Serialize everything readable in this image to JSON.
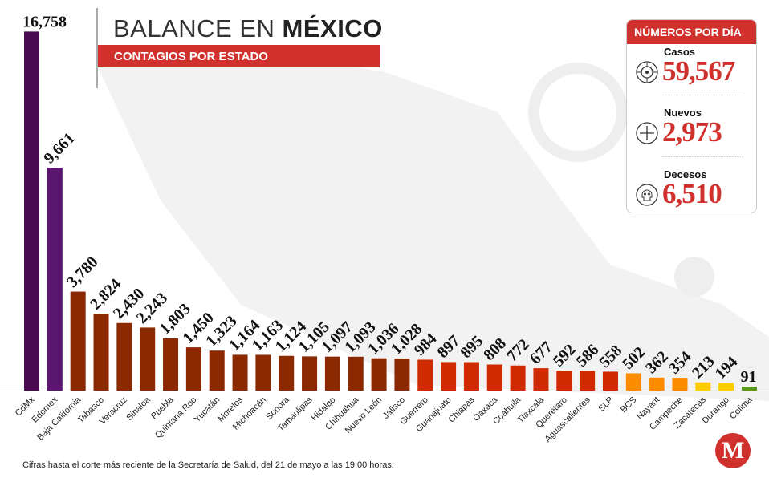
{
  "header": {
    "title_light": "BALANCE EN ",
    "title_bold": "MÉXICO",
    "subtitle": "CONTAGIOS POR ESTADO"
  },
  "card": {
    "title": "NÚMEROS POR DÍA",
    "stats": [
      {
        "label": "Casos",
        "value": "59,567",
        "icon": "virus-icon"
      },
      {
        "label": "Nuevos",
        "value": "2,973",
        "icon": "plus-circle-icon"
      },
      {
        "label": "Decesos",
        "value": "6,510",
        "icon": "skull-icon"
      }
    ]
  },
  "footer": "Cifras hasta el corte más reciente de la Secretaría de Salud, del 21 de mayo a las 19:00 horas.",
  "logo": "M",
  "chart_data": {
    "type": "bar",
    "title": "CONTAGIOS POR ESTADO",
    "categories": [
      "CdMx",
      "Edomex",
      "Baja California",
      "Tabasco",
      "Veracruz",
      "Sinaloa",
      "Puebla",
      "Quintana Roo",
      "Yucatán",
      "Morelos",
      "Michoacán",
      "Sonora",
      "Tamaulipas",
      "Hidalgo",
      "Chihuahua",
      "Nuevo León",
      "Jalisco",
      "Guerrero",
      "Guanajuato",
      "Chiapas",
      "Oaxaca",
      "Coahuila",
      "Tlaxcala",
      "Querétaro",
      "Aguascalientes",
      "SLP",
      "BCS",
      "Nayarit",
      "Campeche",
      "Zacatecas",
      "Durango",
      "Colima"
    ],
    "values": [
      16758,
      9661,
      3780,
      2824,
      2430,
      2243,
      1803,
      1450,
      1323,
      1164,
      1163,
      1124,
      1105,
      1097,
      1093,
      1036,
      1028,
      984,
      897,
      895,
      808,
      772,
      677,
      592,
      586,
      558,
      502,
      362,
      354,
      213,
      194,
      91
    ],
    "labels": [
      "16,758",
      "9,661",
      "3,780",
      "2,824",
      "2,430",
      "2,243",
      "1,803",
      "1,450",
      "1,323",
      "1,164",
      "1,163",
      "1,124",
      "1,105",
      "1,097",
      "1,093",
      "1,036",
      "1,028",
      "984",
      "897",
      "895",
      "808",
      "772",
      "677",
      "592",
      "586",
      "558",
      "502",
      "362",
      "354",
      "213",
      "194",
      "91"
    ],
    "colors": [
      "#4a0a4f",
      "#5b1770",
      "#8b2a02",
      "#8b2a02",
      "#8b2a02",
      "#8b2a02",
      "#8b2a02",
      "#8b2a02",
      "#8b2a02",
      "#8b2a02",
      "#8b2a02",
      "#8b2a02",
      "#8b2a02",
      "#8b2a02",
      "#8b2a02",
      "#8b2a02",
      "#8b2a02",
      "#cf2b00",
      "#cf2b00",
      "#cf2b00",
      "#cf2b00",
      "#cf2b00",
      "#cf2b00",
      "#cf2b00",
      "#cf2b00",
      "#cf2b00",
      "#ff8c00",
      "#ff8c00",
      "#ff8c00",
      "#ffcc00",
      "#ffcc00",
      "#5c9a1a"
    ],
    "grid": false
  }
}
